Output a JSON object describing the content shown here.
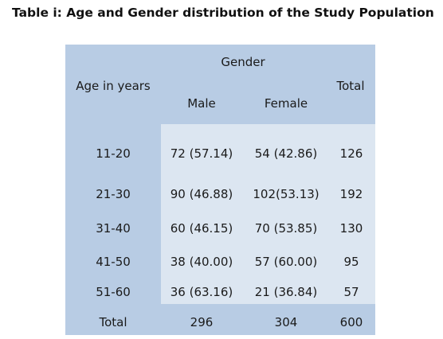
{
  "caption": "Table i: Age and Gender distribution of the Study Population",
  "header": {
    "age": "Age in years",
    "gender": "Gender",
    "male": "Male",
    "female": "Female",
    "total": "Total"
  },
  "rows": [
    {
      "age": "11-20",
      "male": "72 (57.14)",
      "female": "54 (42.86)",
      "total": "126"
    },
    {
      "age": "21-30",
      "male": "90 (46.88)",
      "female": "102(53.13)",
      "total": "192"
    },
    {
      "age": "31-40",
      "male": "60 (46.15)",
      "female": "70 (53.85)",
      "total": "130"
    },
    {
      "age": "41-50",
      "male": "38 (40.00)",
      "female": "57 (60.00)",
      "total": "95"
    },
    {
      "age": "51-60",
      "male": "36 (63.16)",
      "female": "21 (36.84)",
      "total": "57"
    }
  ],
  "totals": {
    "label": "Total",
    "male": "296",
    "female": "304",
    "total": "600"
  },
  "colors": {
    "outer_background": "#b8cce4",
    "inner_background": "#dce6f1"
  }
}
